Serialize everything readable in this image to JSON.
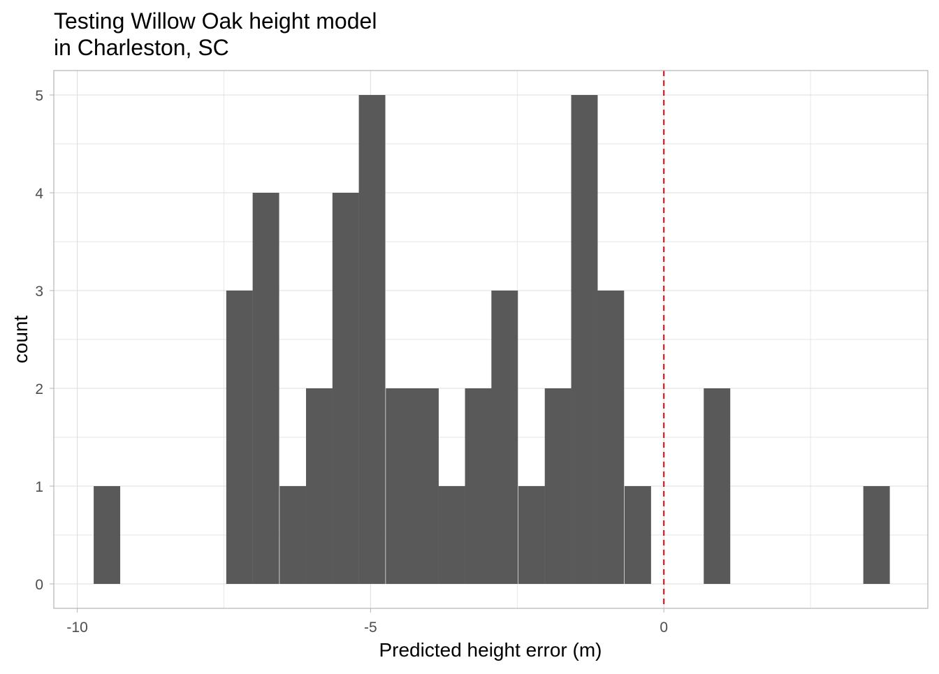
{
  "chart_data": {
    "type": "bar",
    "title_line1": "Testing Willow Oak height model",
    "title_line2": "in Charleston, SC",
    "xlabel": "Predicted height error (m)",
    "ylabel": "count",
    "xlim": [
      -10.4,
      4.5
    ],
    "ylim": [
      -0.25,
      5.25
    ],
    "x_ticks": [
      -10,
      -5,
      0
    ],
    "x_tick_labels": [
      "-10",
      "-5",
      "0"
    ],
    "y_ticks": [
      0,
      1,
      2,
      3,
      4,
      5
    ],
    "y_tick_labels": [
      "0",
      "1",
      "2",
      "3",
      "4",
      "5"
    ],
    "grid": true,
    "bin_width": 0.452,
    "bins": [
      {
        "start": -9.72,
        "count": 1
      },
      {
        "start": -9.27,
        "count": 0
      },
      {
        "start": -8.82,
        "count": 0
      },
      {
        "start": -8.36,
        "count": 0
      },
      {
        "start": -7.91,
        "count": 0
      },
      {
        "start": -7.46,
        "count": 3
      },
      {
        "start": -7.01,
        "count": 4
      },
      {
        "start": -6.55,
        "count": 1
      },
      {
        "start": -6.1,
        "count": 2
      },
      {
        "start": -5.65,
        "count": 4
      },
      {
        "start": -5.2,
        "count": 5
      },
      {
        "start": -4.74,
        "count": 2
      },
      {
        "start": -4.29,
        "count": 2
      },
      {
        "start": -3.84,
        "count": 1
      },
      {
        "start": -3.39,
        "count": 2
      },
      {
        "start": -2.94,
        "count": 3
      },
      {
        "start": -2.48,
        "count": 1
      },
      {
        "start": -2.03,
        "count": 2
      },
      {
        "start": -1.58,
        "count": 5
      },
      {
        "start": -1.13,
        "count": 3
      },
      {
        "start": -0.67,
        "count": 1
      },
      {
        "start": -0.22,
        "count": 0
      },
      {
        "start": 0.23,
        "count": 0
      },
      {
        "start": 0.68,
        "count": 2
      },
      {
        "start": 1.14,
        "count": 0
      },
      {
        "start": 1.59,
        "count": 0
      },
      {
        "start": 2.04,
        "count": 0
      },
      {
        "start": 2.5,
        "count": 0
      },
      {
        "start": 2.95,
        "count": 0
      },
      {
        "start": 3.4,
        "count": 1
      }
    ],
    "reference_line": {
      "x": 0,
      "color": "#e8000b",
      "style": "dashed"
    },
    "colors": {
      "bar": "#595959",
      "grid": "#dedede",
      "panel_border": "#b3b3b3",
      "axis_text": "#4d4d4d",
      "title": "#000000"
    }
  }
}
